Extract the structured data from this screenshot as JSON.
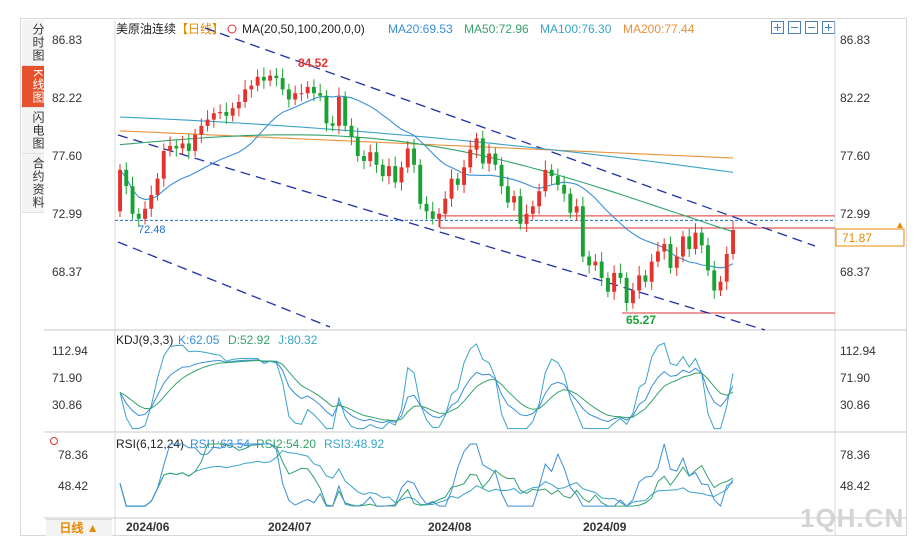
{
  "sidebar": {
    "tabs": [
      {
        "label": "分时图",
        "active": false
      },
      {
        "label": "K线图",
        "active": true
      },
      {
        "label": "闪电图",
        "active": false
      },
      {
        "label": "合约资料",
        "active": false
      }
    ]
  },
  "header": {
    "instrument": "美原油连续",
    "period_tag": "【日线】",
    "ma_label": "MA(20,50,100,200,0,0)",
    "ma20": "MA20:69.53",
    "ma50": "MA50:72.96",
    "ma100": "MA100:76.30",
    "ma200": "MA200:77.44"
  },
  "toolbar": {
    "icons": [
      "zoom-in-icon",
      "zoom-out-icon",
      "pan-left-icon",
      "pan-right-icon"
    ]
  },
  "colors": {
    "up": "#e5322d",
    "down": "#1aa334",
    "ma20": "#3a8fd9",
    "ma50": "#34a36a",
    "ma100": "#3aa3c9",
    "ma200": "#e8913a",
    "channel": "#1f2fa8"
  },
  "price_panel": {
    "y_ticks": [
      "86.83",
      "82.22",
      "77.60",
      "72.99",
      "68.37"
    ],
    "high_label": "84.52",
    "low_label": "65.27",
    "left_marker": "72.48",
    "current_price": "71.87"
  },
  "kdj_panel": {
    "label": "KDJ(9,3,3)",
    "k": "K:62.05",
    "d": "D:52.92",
    "j": "J:80.32",
    "y_ticks": [
      "112.94",
      "71.90",
      "30.86"
    ]
  },
  "rsi_panel": {
    "label": "RSI(6,12,24)",
    "rsi1": "RSI1:63.54",
    "rsi2": "RSI2:54.20",
    "rsi3": "RSI3:48.92",
    "y_ticks": [
      "78.36",
      "48.42"
    ]
  },
  "x_axis": {
    "labels": [
      "2024/06",
      "2024/07",
      "2024/08",
      "2024/09"
    ]
  },
  "period_button": "日线 ▲",
  "watermark": "1QH.CN",
  "chart_data": {
    "type": "candlestick",
    "title": "美原油连续 日线",
    "x_labels": [
      "2024/06",
      "2024/07",
      "2024/08",
      "2024/09"
    ],
    "ylim": [
      63.5,
      87.5
    ],
    "candles_close": [
      76.5,
      75.2,
      73.0,
      72.6,
      73.4,
      74.5,
      75.8,
      78.0,
      78.4,
      78.2,
      78.6,
      78.0,
      79.3,
      80.0,
      80.5,
      81.0,
      81.1,
      80.8,
      81.4,
      81.9,
      82.9,
      83.2,
      83.9,
      83.6,
      84.0,
      83.8,
      82.9,
      82.1,
      82.6,
      82.6,
      83.1,
      82.6,
      82.4,
      80.2,
      80.0,
      82.3,
      80.0,
      79.1,
      77.6,
      77.2,
      77.9,
      76.9,
      76.0,
      76.8,
      75.5,
      76.7,
      78.2,
      76.9,
      73.8,
      73.2,
      72.6,
      73.0,
      74.2,
      75.8,
      75.3,
      76.7,
      78.1,
      79.0,
      77.0,
      77.8,
      76.9,
      75.2,
      73.9,
      74.4,
      72.2,
      73.0,
      73.6,
      74.8,
      76.5,
      76.0,
      75.3,
      74.6,
      73.1,
      73.6,
      69.6,
      68.9,
      69.2,
      67.9,
      66.8,
      68.3,
      67.9,
      65.9,
      66.9,
      68.1,
      67.6,
      69.2,
      70.0,
      70.6,
      68.7,
      69.6,
      71.2,
      70.2,
      71.5,
      70.5,
      68.5,
      66.9,
      67.6,
      69.8,
      71.7
    ],
    "candles_open": [
      73.2,
      76.5,
      75.2,
      73.0,
      72.6,
      73.4,
      74.5,
      75.8,
      78.0,
      78.4,
      78.2,
      78.6,
      78.0,
      79.3,
      80.0,
      80.5,
      81.0,
      81.1,
      80.8,
      81.4,
      81.9,
      82.9,
      83.2,
      83.9,
      83.6,
      84.0,
      83.8,
      82.9,
      82.1,
      82.6,
      82.6,
      83.1,
      82.6,
      82.4,
      80.2,
      80.0,
      82.3,
      80.0,
      79.1,
      77.6,
      77.2,
      77.9,
      76.9,
      76.0,
      76.8,
      75.5,
      76.7,
      78.2,
      76.9,
      73.8,
      73.2,
      72.6,
      73.0,
      74.2,
      75.8,
      75.3,
      76.7,
      78.1,
      79.0,
      77.0,
      77.8,
      76.9,
      75.2,
      73.9,
      74.4,
      72.2,
      73.0,
      73.6,
      74.8,
      76.5,
      76.0,
      75.3,
      74.6,
      73.1,
      73.6,
      69.6,
      68.9,
      69.2,
      67.9,
      66.8,
      68.3,
      67.9,
      65.9,
      66.9,
      68.1,
      67.6,
      69.2,
      70.0,
      70.6,
      68.7,
      69.6,
      71.2,
      70.2,
      71.5,
      70.5,
      68.5,
      66.9,
      67.6,
      69.8
    ],
    "high": 84.52,
    "low": 65.27,
    "current": 71.87,
    "horizontal_levels": [
      72.48,
      71.87,
      65.27
    ],
    "ma20_value": 69.53,
    "ma50_value": 72.96,
    "ma100_value": 76.3,
    "ma200_value": 77.44,
    "kdj": {
      "k": 62.05,
      "d": 52.92,
      "j": 80.32,
      "ylim": [
        10,
        125
      ]
    },
    "rsi": {
      "rsi1": 63.54,
      "rsi2": 54.2,
      "rsi3": 48.92,
      "ylim": [
        25,
        90
      ]
    }
  }
}
